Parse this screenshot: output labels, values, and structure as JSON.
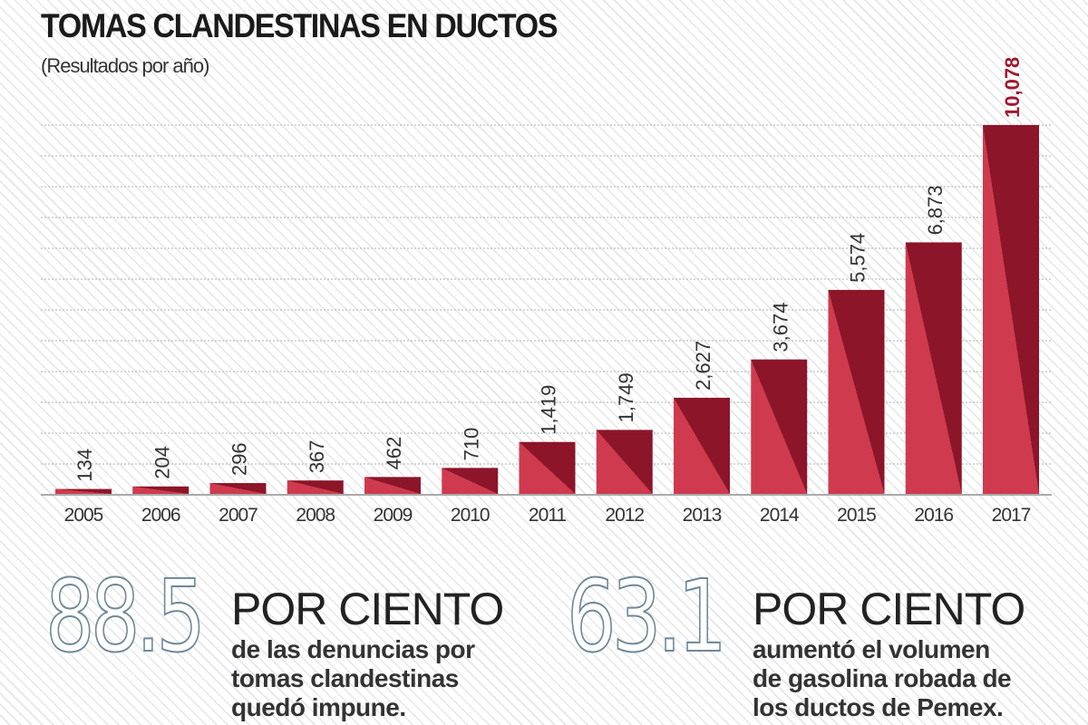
{
  "header": {
    "title": "TOMAS CLANDESTINAS EN DUCTOS",
    "subtitle": "(Resultados por año)"
  },
  "chart_data": {
    "type": "bar",
    "title": "TOMAS CLANDESTINAS EN DUCTOS",
    "subtitle": "(Resultados por año)",
    "categories": [
      "2005",
      "2006",
      "2007",
      "2008",
      "2009",
      "2010",
      "2011",
      "2012",
      "2013",
      "2014",
      "2015",
      "2016",
      "2017"
    ],
    "values": [
      134,
      204,
      296,
      367,
      462,
      710,
      1419,
      1749,
      2627,
      3674,
      5574,
      6873,
      10078
    ],
    "value_labels": [
      "134",
      "204",
      "296",
      "367",
      "462",
      "710",
      "1,419",
      "1,749",
      "2,627",
      "3,674",
      "5,574",
      "6,873",
      "10,078"
    ],
    "ylim": [
      0,
      10078
    ],
    "grid": true,
    "colors": {
      "bar_dark": "#8c1529",
      "bar_light": "#cf3a4e",
      "highlight_label": "#a0182e"
    }
  },
  "stats": [
    {
      "number": "88.5",
      "headline": "POR CIENTO",
      "lines": [
        "de las denuncias por",
        "tomas clandestinas",
        "quedó impune."
      ]
    },
    {
      "number": "63.1",
      "headline": "POR CIENTO",
      "lines": [
        "aumentó el volumen",
        "de gasolina robada de",
        "los ductos de Pemex."
      ]
    }
  ]
}
